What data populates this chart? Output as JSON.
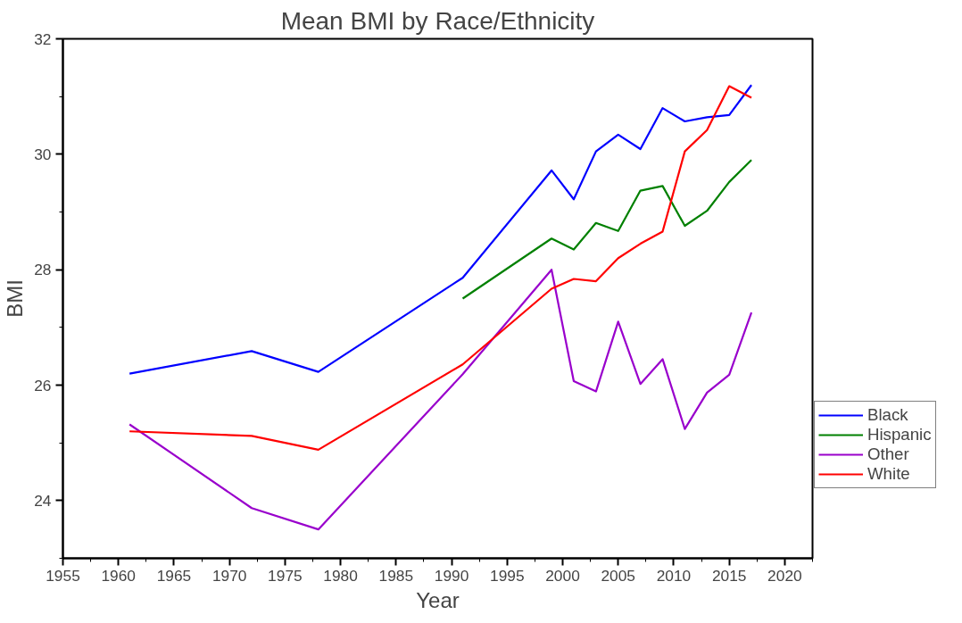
{
  "chart_data": {
    "type": "line",
    "title": "Mean BMI by Race/Ethnicity",
    "xlabel": "Year",
    "ylabel": "BMI",
    "x": [
      1961,
      1972,
      1978,
      1991,
      1999,
      2001,
      2003,
      2005,
      2007,
      2009,
      2011,
      2013,
      2015,
      2017
    ],
    "series": [
      {
        "name": "Black",
        "color": "#0000ff",
        "values": [
          26.2,
          26.59,
          26.23,
          27.86,
          29.72,
          29.22,
          30.05,
          30.34,
          30.09,
          30.8,
          30.57,
          30.64,
          30.68,
          31.2
        ]
      },
      {
        "name": "Hispanic",
        "color": "#008000",
        "values": [
          null,
          null,
          null,
          27.5,
          28.54,
          28.35,
          28.81,
          28.67,
          29.37,
          29.45,
          28.76,
          29.02,
          29.52,
          29.9
        ]
      },
      {
        "name": "Other",
        "color": "#9900cc",
        "values": [
          25.32,
          23.87,
          23.5,
          26.19,
          28.0,
          26.07,
          25.89,
          27.1,
          26.02,
          26.45,
          25.24,
          25.87,
          26.18,
          27.26
        ]
      },
      {
        "name": "White",
        "color": "#ff0000",
        "values": [
          25.2,
          25.12,
          24.88,
          26.36,
          27.67,
          27.84,
          27.8,
          28.2,
          28.45,
          28.66,
          30.05,
          30.42,
          31.18,
          30.98
        ]
      }
    ],
    "xlim": [
      1955,
      2022.5
    ],
    "xticks": [
      1955,
      {
        "value": 1957.5,
        "label": null
      },
      1960,
      {
        "value": 1962.5,
        "label": null
      },
      1965,
      {
        "value": 1967.5,
        "label": null
      },
      1970,
      {
        "value": 1972.5,
        "label": null
      },
      1975,
      {
        "value": 1977.5,
        "label": null
      },
      1980,
      {
        "value": 1982.5,
        "label": null
      },
      1985,
      {
        "value": 1987.5,
        "label": null
      },
      1990,
      {
        "value": 1992.5,
        "label": null
      },
      1995,
      {
        "value": 1997.5,
        "label": null
      },
      2000,
      {
        "value": 2002.5,
        "label": null
      },
      2005,
      {
        "value": 2007.5,
        "label": null
      },
      2010,
      {
        "value": 2012.5,
        "label": null
      },
      2015,
      {
        "value": 2017.5,
        "label": null
      },
      2020,
      {
        "value": 2022.5,
        "label": null
      }
    ],
    "ylim": [
      23,
      32
    ],
    "yticks": [
      {
        "value": 23,
        "label": null
      },
      24,
      {
        "value": 25,
        "label": null
      },
      26,
      {
        "value": 27,
        "label": null
      },
      28,
      {
        "value": 29,
        "label": null
      },
      30,
      {
        "value": 31,
        "label": null
      },
      32
    ],
    "grid": false,
    "legend": "bottom right",
    "marker": "none",
    "line_style": "solid"
  }
}
